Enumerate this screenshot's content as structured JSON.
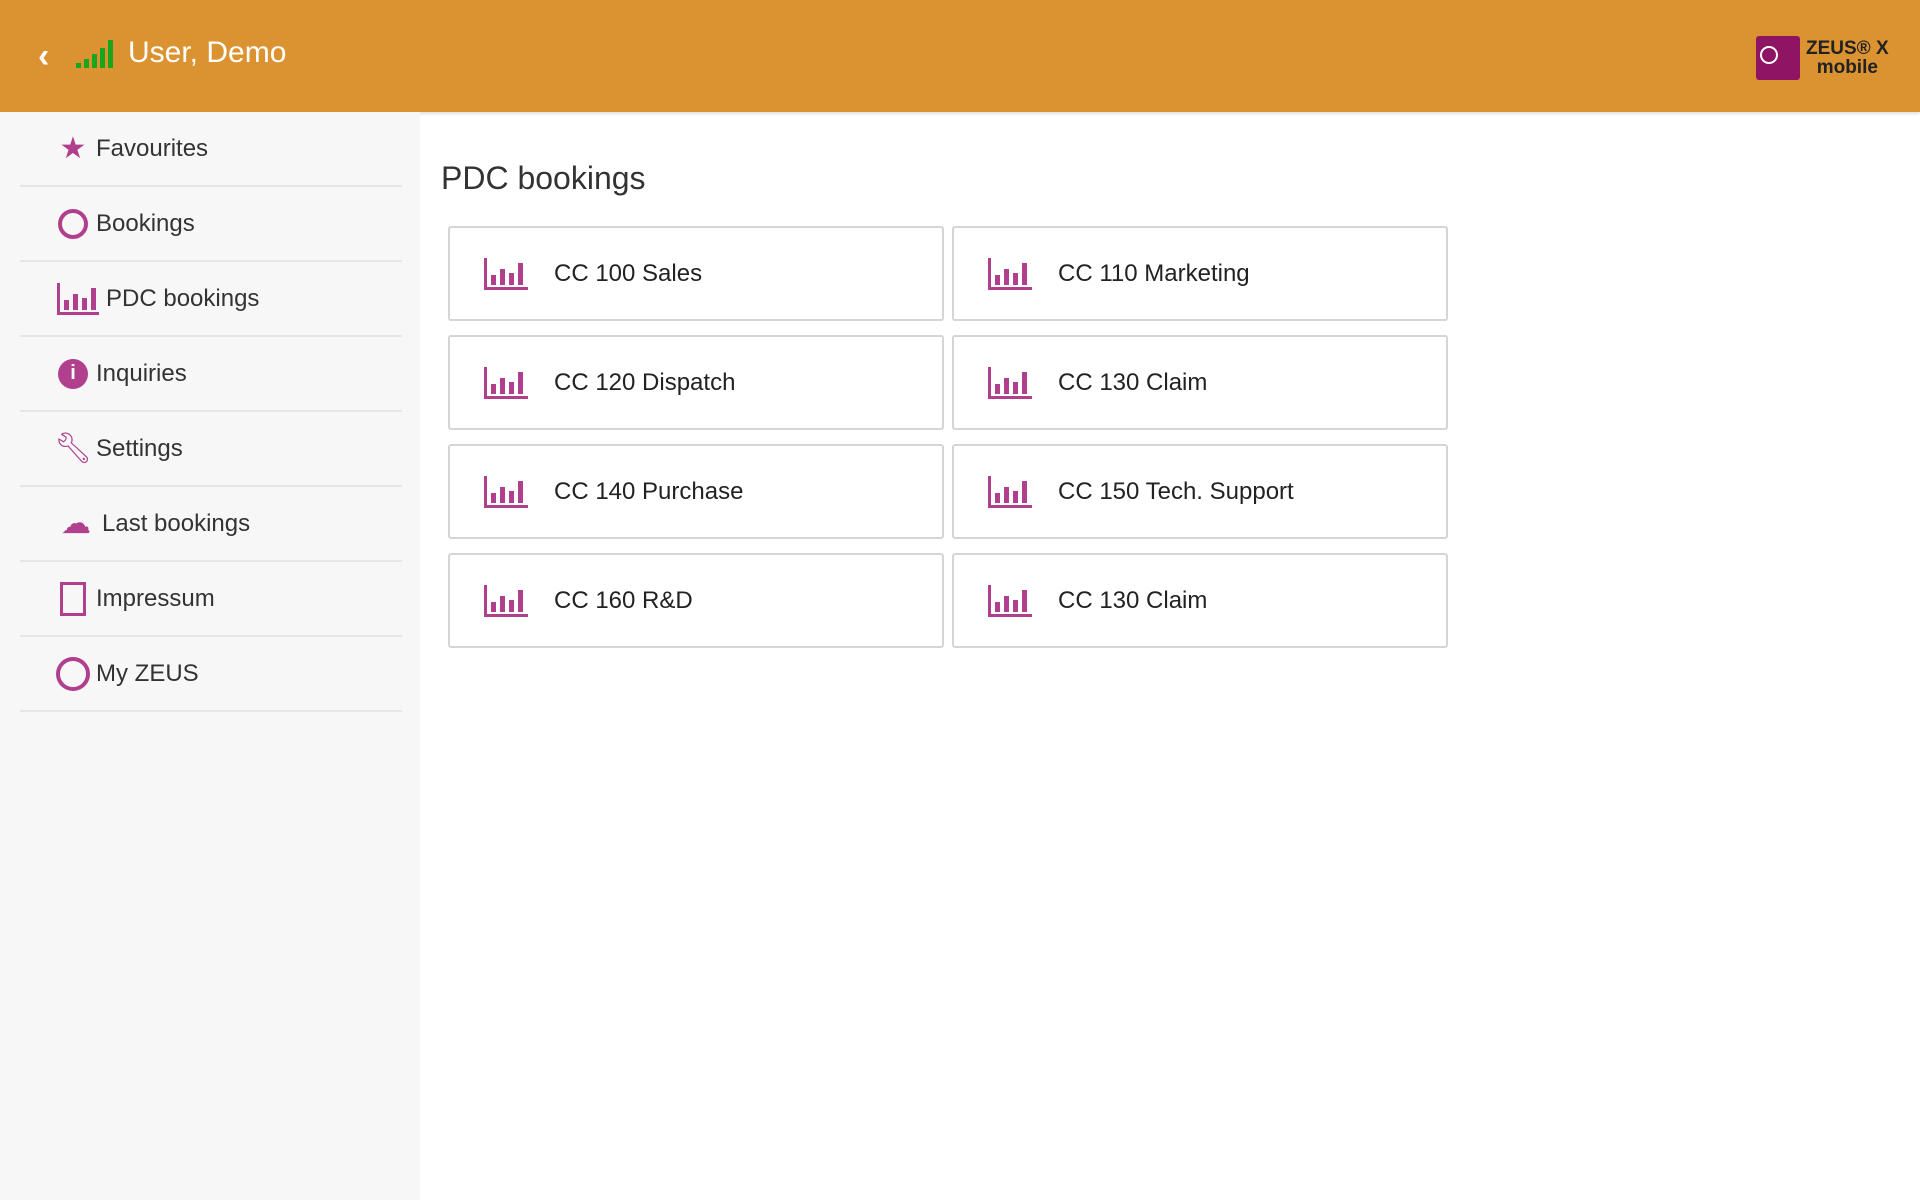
{
  "header": {
    "title": "User, Demo",
    "back_icon": "chevron-left-icon",
    "signal_icon": "signal-icon",
    "logo_text": "ZEUS® X",
    "logo_sub": "mobile",
    "color": "#db9231",
    "signal_color": "#19a51d"
  },
  "sidebar": {
    "accent": "#b03f8e",
    "items": [
      {
        "label": "Favourites",
        "icon": "star-icon"
      },
      {
        "label": "Bookings",
        "icon": "clock-icon"
      },
      {
        "label": "PDC bookings",
        "icon": "bar-chart-icon"
      },
      {
        "label": "Inquiries",
        "icon": "info-icon"
      },
      {
        "label": "Settings",
        "icon": "wrench-icon"
      },
      {
        "label": "Last bookings",
        "icon": "cloud-upload-icon"
      },
      {
        "label": "Impressum",
        "icon": "document-icon"
      },
      {
        "label": "My ZEUS",
        "icon": "user-icon"
      }
    ]
  },
  "main": {
    "title": "PDC bookings",
    "cards": [
      {
        "label": "CC 100 Sales"
      },
      {
        "label": "CC 110 Marketing"
      },
      {
        "label": "CC 120 Dispatch"
      },
      {
        "label": "CC 130 Claim"
      },
      {
        "label": "CC 140 Purchase"
      },
      {
        "label": "CC 150 Tech. Support"
      },
      {
        "label": "CC 160 R&D"
      },
      {
        "label": "CC 130 Claim"
      }
    ]
  }
}
